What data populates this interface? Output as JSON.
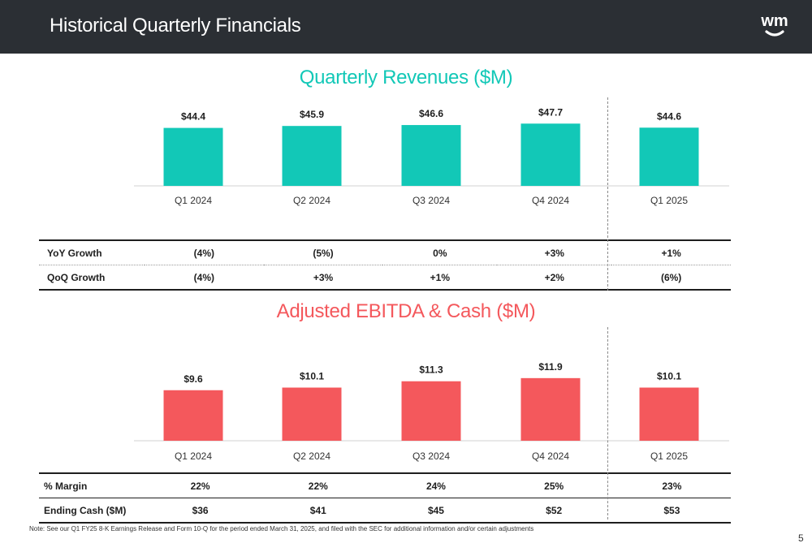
{
  "header": {
    "title": "Historical Quarterly Financials"
  },
  "logo": {
    "text": "wm",
    "icon": "smile-arc-icon",
    "color": "#ffffff"
  },
  "colors": {
    "revenue": "#12c8b7",
    "ebitda": "#f4585c",
    "header_bg": "#2b2f34"
  },
  "chart_data": [
    {
      "type": "bar",
      "title": "Quarterly Revenues ($M)",
      "categories": [
        "Q1 2024",
        "Q2 2024",
        "Q3 2024",
        "Q4 2024",
        "Q1 2025"
      ],
      "values": [
        44.4,
        45.9,
        46.6,
        47.7,
        44.6
      ],
      "data_labels": [
        "$44.4",
        "$45.9",
        "$46.6",
        "$47.7",
        "$44.6"
      ],
      "ylim": [
        0,
        48.5
      ],
      "grid": false,
      "legend": "none",
      "xlabel": "",
      "ylabel": ""
    },
    {
      "type": "bar",
      "title": "Adjusted EBITDA & Cash ($M)",
      "categories": [
        "Q1 2024",
        "Q2 2024",
        "Q3 2024",
        "Q4 2024",
        "Q1 2025"
      ],
      "values": [
        9.6,
        10.1,
        11.3,
        11.9,
        10.1
      ],
      "data_labels": [
        "$9.6",
        "$10.1",
        "$11.3",
        "$11.9",
        "$10.1"
      ],
      "ylim": [
        0,
        12.8
      ],
      "grid": false,
      "legend": "none",
      "xlabel": "",
      "ylabel": ""
    }
  ],
  "revenue_table": {
    "rows": [
      {
        "label": "YoY Growth",
        "values": [
          "(4%)",
          "(5%)",
          "0%",
          "+3%",
          "+1%"
        ]
      },
      {
        "label": "QoQ Growth",
        "values": [
          "(4%)",
          "+3%",
          "+1%",
          "+2%",
          "(6%)"
        ]
      }
    ]
  },
  "ebitda_table": {
    "rows": [
      {
        "label": "% Margin",
        "values": [
          "22%",
          "22%",
          "24%",
          "25%",
          "23%"
        ]
      },
      {
        "label": "Ending Cash ($M)",
        "values": [
          "$36",
          "$41",
          "$45",
          "$52",
          "$53"
        ]
      }
    ]
  },
  "footer": {
    "note": "Note: See our Q1 FY25 8-K Earnings Release and Form 10-Q for the period ended March 31, 2025, and filed with the SEC for additional information and/or certain adjustments",
    "page_number": "5"
  }
}
